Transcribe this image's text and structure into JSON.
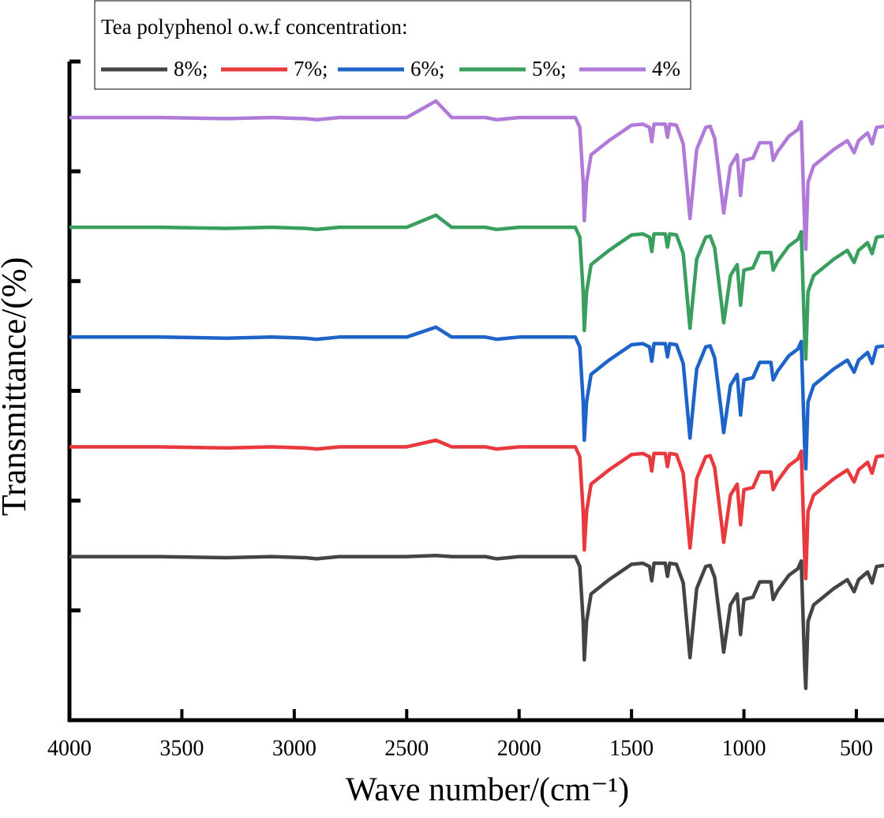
{
  "chart_data": {
    "type": "line",
    "legend_title": "Tea polyphenol o.w.f concentration:",
    "xlabel": "Wave number/(cm⁻¹)",
    "ylabel": "Transmittance/(%)",
    "xlim": [
      4000,
      377
    ],
    "xticks": [
      4000,
      3500,
      3000,
      2500,
      2000,
      1500,
      1000,
      500
    ],
    "ylim": [
      0,
      6
    ],
    "yticks": [
      1,
      2,
      3,
      4,
      5,
      6
    ],
    "x": [
      4000,
      3800,
      3600,
      3300,
      3100,
      2950,
      2900,
      2800,
      2500,
      2370,
      2300,
      2150,
      2100,
      2000,
      1800,
      1750,
      1730,
      1715,
      1710,
      1700,
      1680,
      1600,
      1500,
      1450,
      1420,
      1410,
      1400,
      1350,
      1340,
      1330,
      1300,
      1270,
      1240,
      1210,
      1170,
      1150,
      1130,
      1100,
      1090,
      1060,
      1030,
      1015,
      1000,
      960,
      930,
      880,
      870,
      850,
      800,
      760,
      745,
      730,
      725,
      715,
      690,
      600,
      540,
      510,
      490,
      450,
      430,
      410,
      377
    ],
    "series": [
      {
        "name": "8%;",
        "color": "#444444",
        "values": [
          1.49,
          1.49,
          1.49,
          1.48,
          1.49,
          1.48,
          1.47,
          1.49,
          1.49,
          1.5,
          1.49,
          1.49,
          1.47,
          1.49,
          1.49,
          1.49,
          1.4,
          0.9,
          0.55,
          0.9,
          1.15,
          1.28,
          1.42,
          1.43,
          1.4,
          1.27,
          1.43,
          1.43,
          1.31,
          1.43,
          1.42,
          1.25,
          0.57,
          1.2,
          1.4,
          1.41,
          1.3,
          0.8,
          0.62,
          1.05,
          1.15,
          0.78,
          1.1,
          1.12,
          1.26,
          1.26,
          1.1,
          1.18,
          1.32,
          1.38,
          1.45,
          0.5,
          0.29,
          0.9,
          1.05,
          1.2,
          1.28,
          1.17,
          1.28,
          1.35,
          1.25,
          1.4,
          1.41
        ]
      },
      {
        "name": "7%;",
        "color": "#e8393f",
        "values": [
          2.49,
          2.49,
          2.49,
          2.48,
          2.49,
          2.48,
          2.47,
          2.49,
          2.49,
          2.55,
          2.49,
          2.49,
          2.47,
          2.49,
          2.49,
          2.49,
          2.4,
          1.9,
          1.55,
          1.9,
          2.15,
          2.28,
          2.42,
          2.43,
          2.4,
          2.27,
          2.43,
          2.43,
          2.31,
          2.43,
          2.42,
          2.25,
          1.57,
          2.2,
          2.4,
          2.41,
          2.3,
          1.8,
          1.62,
          2.05,
          2.15,
          1.78,
          2.1,
          2.12,
          2.26,
          2.26,
          2.1,
          2.18,
          2.32,
          2.38,
          2.45,
          1.5,
          1.29,
          1.9,
          2.05,
          2.2,
          2.28,
          2.17,
          2.28,
          2.35,
          2.25,
          2.4,
          2.41
        ]
      },
      {
        "name": "6%;",
        "color": "#1e64c8",
        "values": [
          3.49,
          3.49,
          3.49,
          3.48,
          3.49,
          3.48,
          3.47,
          3.49,
          3.49,
          3.58,
          3.49,
          3.49,
          3.47,
          3.49,
          3.49,
          3.49,
          3.4,
          2.9,
          2.55,
          2.9,
          3.15,
          3.28,
          3.42,
          3.43,
          3.4,
          3.27,
          3.43,
          3.43,
          3.31,
          3.43,
          3.42,
          3.25,
          2.57,
          3.2,
          3.4,
          3.41,
          3.3,
          2.8,
          2.62,
          3.05,
          3.15,
          2.78,
          3.1,
          3.12,
          3.26,
          3.26,
          3.1,
          3.18,
          3.32,
          3.38,
          3.45,
          2.5,
          2.29,
          2.9,
          3.05,
          3.2,
          3.28,
          3.17,
          3.28,
          3.35,
          3.25,
          3.4,
          3.41
        ]
      },
      {
        "name": "5%;",
        "color": "#3a9e5f",
        "values": [
          4.49,
          4.49,
          4.49,
          4.48,
          4.49,
          4.48,
          4.47,
          4.49,
          4.49,
          4.6,
          4.49,
          4.49,
          4.47,
          4.49,
          4.49,
          4.49,
          4.4,
          3.9,
          3.55,
          3.9,
          4.15,
          4.28,
          4.42,
          4.43,
          4.4,
          4.27,
          4.43,
          4.43,
          4.31,
          4.43,
          4.42,
          4.25,
          3.57,
          4.2,
          4.4,
          4.41,
          4.3,
          3.8,
          3.62,
          4.05,
          4.15,
          3.78,
          4.1,
          4.12,
          4.26,
          4.26,
          4.1,
          4.18,
          4.32,
          4.38,
          4.45,
          3.5,
          3.29,
          3.9,
          4.05,
          4.2,
          4.28,
          4.17,
          4.28,
          4.35,
          4.25,
          4.4,
          4.41
        ]
      },
      {
        "name": "4%",
        "color": "#b07ad8",
        "values": [
          5.49,
          5.49,
          5.49,
          5.48,
          5.49,
          5.48,
          5.47,
          5.49,
          5.49,
          5.64,
          5.49,
          5.49,
          5.47,
          5.49,
          5.49,
          5.49,
          5.4,
          4.9,
          4.55,
          4.9,
          5.15,
          5.28,
          5.42,
          5.43,
          5.4,
          5.27,
          5.43,
          5.43,
          5.31,
          5.43,
          5.42,
          5.25,
          4.57,
          5.2,
          5.4,
          5.41,
          5.3,
          4.8,
          4.62,
          5.05,
          5.15,
          4.78,
          5.1,
          5.12,
          5.26,
          5.26,
          5.1,
          5.18,
          5.32,
          5.38,
          5.45,
          4.5,
          4.29,
          4.9,
          5.05,
          5.2,
          5.28,
          5.17,
          5.28,
          5.35,
          5.25,
          5.4,
          5.41
        ]
      }
    ]
  }
}
